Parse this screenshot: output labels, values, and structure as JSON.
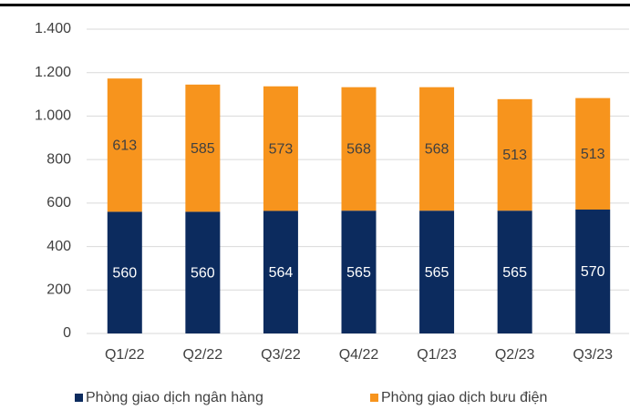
{
  "chart_data": {
    "type": "stacked_bar",
    "categories": [
      "Q1/22",
      "Q2/22",
      "Q3/22",
      "Q4/22",
      "Q1/23",
      "Q2/23",
      "Q3/23"
    ],
    "series": [
      {
        "name": "Phòng giao dịch ngân hàng",
        "color": "#0c2b5e",
        "values": [
          560,
          560,
          564,
          565,
          565,
          565,
          570
        ]
      },
      {
        "name": "Phòng giao dịch bưu điện",
        "color": "#f7941d",
        "values": [
          613,
          585,
          573,
          568,
          568,
          513,
          513
        ]
      }
    ],
    "ylim": [
      0,
      1400
    ],
    "yticks": [
      0,
      200,
      400,
      600,
      800,
      {
        "value": 1000,
        "label": "1.000"
      },
      {
        "value": 1200,
        "label": "1.200"
      },
      {
        "value": 1400,
        "label": "1.400"
      }
    ],
    "grid": true,
    "legend": "bottom"
  }
}
